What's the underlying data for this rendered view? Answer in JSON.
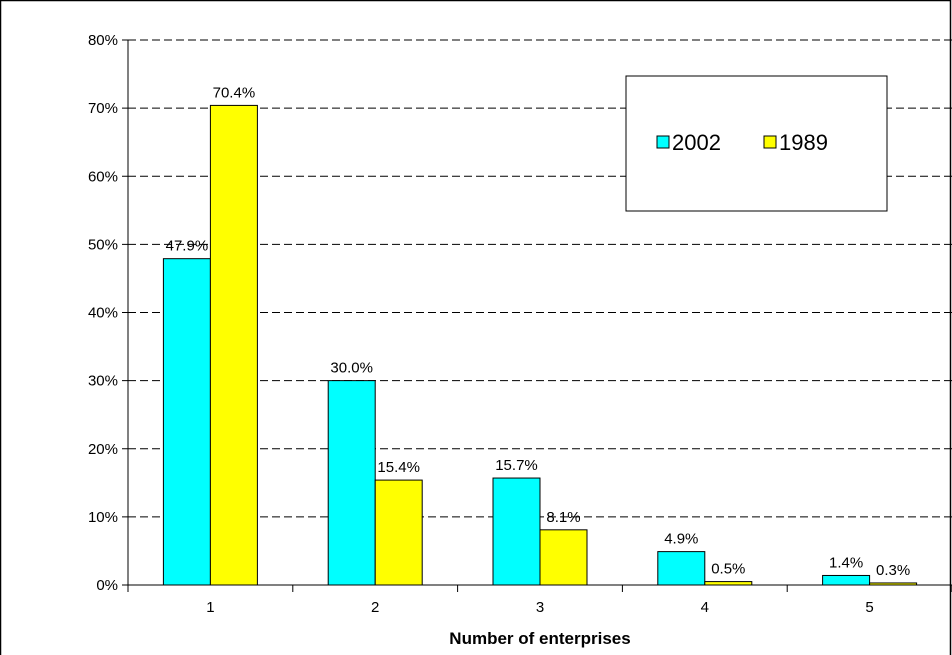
{
  "chart_data": {
    "type": "bar",
    "title": "",
    "xlabel": "Number of enterprises",
    "ylabel": "",
    "categories": [
      "1",
      "2",
      "3",
      "4",
      "5"
    ],
    "series": [
      {
        "name": "2002",
        "color": "#00FFFF",
        "values": [
          47.9,
          30.0,
          15.7,
          4.9,
          1.4
        ],
        "labels": [
          "47.9%",
          "30.0%",
          "15.7%",
          "4.9%",
          "1.4%"
        ]
      },
      {
        "name": "1989",
        "color": "#FFFF00",
        "values": [
          70.4,
          15.4,
          8.1,
          0.5,
          0.3
        ],
        "labels": [
          "70.4%",
          "15.4%",
          "8.1%",
          "0.5%",
          "0.3%"
        ]
      }
    ],
    "ylim": [
      0,
      80
    ],
    "yticks": [
      0,
      10,
      20,
      30,
      40,
      50,
      60,
      70,
      80
    ],
    "ytick_labels": [
      "0%",
      "10%",
      "20%",
      "30%",
      "40%",
      "50%",
      "60%",
      "70%",
      "80%"
    ],
    "grid": true,
    "legend_position": "top-right"
  }
}
